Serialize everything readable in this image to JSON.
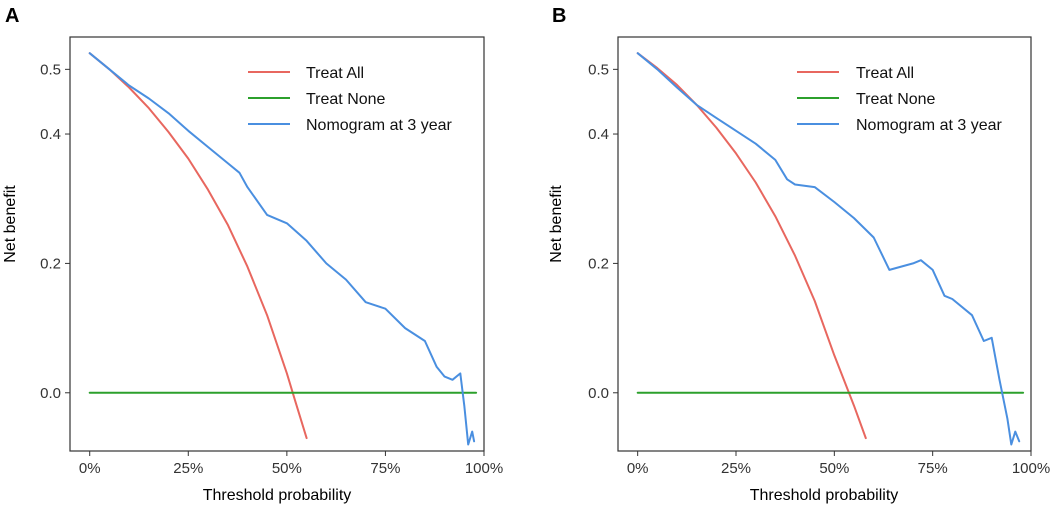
{
  "chart_data": [
    {
      "type": "line",
      "panel_label": "A",
      "xlabel": "Threshold probability",
      "ylabel": "Net benefit",
      "xlim": [
        -0.05,
        1.0
      ],
      "ylim": [
        -0.09,
        0.55
      ],
      "x_ticks": [
        0,
        0.25,
        0.5,
        0.75,
        1.0
      ],
      "x_tick_labels": [
        "0%",
        "25%",
        "50%",
        "75%",
        "100%"
      ],
      "y_ticks": [
        0.0,
        0.2,
        0.4,
        0.5
      ],
      "y_tick_labels": [
        "0.0",
        "0.2",
        "0.4",
        "0.5"
      ],
      "legend_position": "top-right",
      "series": [
        {
          "name": "Treat All",
          "color": "#e8675f",
          "x": [
            0.0,
            0.05,
            0.1,
            0.15,
            0.2,
            0.25,
            0.3,
            0.35,
            0.4,
            0.45,
            0.5,
            0.52,
            0.55
          ],
          "y": [
            0.525,
            0.5,
            0.472,
            0.44,
            0.403,
            0.362,
            0.314,
            0.26,
            0.195,
            0.12,
            0.03,
            -0.01,
            -0.07
          ]
        },
        {
          "name": "Treat None",
          "color": "#2ca02c",
          "x": [
            0.0,
            0.98
          ],
          "y": [
            0.0,
            0.0
          ]
        },
        {
          "name": "Nomogram at 3 year",
          "color": "#4a8fe0",
          "x": [
            0.0,
            0.05,
            0.1,
            0.15,
            0.2,
            0.25,
            0.3,
            0.35,
            0.38,
            0.4,
            0.45,
            0.5,
            0.55,
            0.6,
            0.65,
            0.7,
            0.75,
            0.8,
            0.85,
            0.88,
            0.9,
            0.92,
            0.94,
            0.95,
            0.96,
            0.97,
            0.975
          ],
          "y": [
            0.525,
            0.5,
            0.475,
            0.455,
            0.432,
            0.405,
            0.38,
            0.355,
            0.34,
            0.318,
            0.275,
            0.262,
            0.235,
            0.2,
            0.175,
            0.14,
            0.13,
            0.1,
            0.08,
            0.04,
            0.025,
            0.02,
            0.03,
            -0.02,
            -0.08,
            -0.06,
            -0.075
          ]
        }
      ]
    },
    {
      "type": "line",
      "panel_label": "B",
      "xlabel": "Threshold probability",
      "ylabel": "Net benefit",
      "xlim": [
        -0.05,
        1.0
      ],
      "ylim": [
        -0.09,
        0.55
      ],
      "x_ticks": [
        0,
        0.25,
        0.5,
        0.75,
        1.0
      ],
      "x_tick_labels": [
        "0%",
        "25%",
        "50%",
        "75%",
        "100%"
      ],
      "y_ticks": [
        0.0,
        0.2,
        0.4,
        0.5
      ],
      "y_tick_labels": [
        "0.0",
        "0.2",
        "0.4",
        "0.5"
      ],
      "legend_position": "top-right",
      "series": [
        {
          "name": "Treat All",
          "color": "#e8675f",
          "x": [
            0.0,
            0.05,
            0.1,
            0.15,
            0.2,
            0.25,
            0.3,
            0.35,
            0.4,
            0.45,
            0.5,
            0.55,
            0.58
          ],
          "y": [
            0.525,
            0.502,
            0.476,
            0.445,
            0.41,
            0.37,
            0.325,
            0.273,
            0.212,
            0.142,
            0.058,
            -0.02,
            -0.07
          ]
        },
        {
          "name": "Treat None",
          "color": "#2ca02c",
          "x": [
            0.0,
            0.98
          ],
          "y": [
            0.0,
            0.0
          ]
        },
        {
          "name": "Nomogram at 3 year",
          "color": "#4a8fe0",
          "x": [
            0.0,
            0.05,
            0.1,
            0.15,
            0.2,
            0.25,
            0.3,
            0.35,
            0.38,
            0.4,
            0.45,
            0.5,
            0.55,
            0.6,
            0.64,
            0.67,
            0.7,
            0.72,
            0.75,
            0.78,
            0.8,
            0.85,
            0.88,
            0.9,
            0.92,
            0.94,
            0.95,
            0.96,
            0.97
          ],
          "y": [
            0.525,
            0.5,
            0.472,
            0.445,
            0.425,
            0.405,
            0.385,
            0.36,
            0.33,
            0.322,
            0.318,
            0.295,
            0.27,
            0.24,
            0.19,
            0.195,
            0.2,
            0.205,
            0.19,
            0.15,
            0.145,
            0.12,
            0.08,
            0.085,
            0.02,
            -0.04,
            -0.08,
            -0.06,
            -0.075
          ]
        }
      ]
    }
  ]
}
